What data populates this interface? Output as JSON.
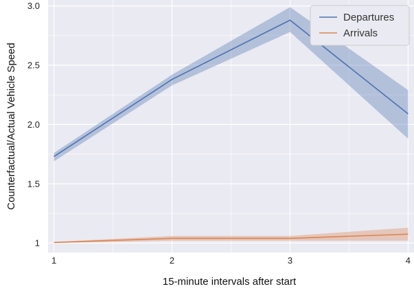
{
  "chart_data": {
    "type": "line",
    "xlabel": "15-minute intervals after start",
    "ylabel": "Counterfactual/Actual Vehicle Speed",
    "xlim": [
      0.95,
      4.05
    ],
    "ylim": [
      0.92,
      3.05
    ],
    "x_ticks": [
      1,
      2,
      3,
      4
    ],
    "x_tick_labels": [
      "1",
      "2",
      "3",
      "4"
    ],
    "y_ticks": [
      1.0,
      1.5,
      2.0,
      2.5,
      3.0
    ],
    "y_tick_labels": [
      "1",
      "1.5",
      "2.0",
      "2.5",
      "3.0"
    ],
    "grid": true,
    "legend_position": "top-right",
    "background": "#eaeaf2",
    "series": [
      {
        "name": "Departures",
        "color": "#4c72b0",
        "x": [
          1,
          2,
          3,
          4
        ],
        "y": [
          1.73,
          2.38,
          2.88,
          2.09
        ],
        "lower": [
          1.69,
          2.33,
          2.78,
          1.88
        ],
        "upper": [
          1.76,
          2.42,
          2.99,
          2.29
        ]
      },
      {
        "name": "Arrivals",
        "color": "#dd8452",
        "x": [
          1,
          2,
          3,
          4
        ],
        "y": [
          1.005,
          1.04,
          1.04,
          1.075
        ],
        "lower": [
          1.0,
          1.02,
          1.02,
          1.02
        ],
        "upper": [
          1.01,
          1.06,
          1.06,
          1.13
        ]
      }
    ]
  }
}
